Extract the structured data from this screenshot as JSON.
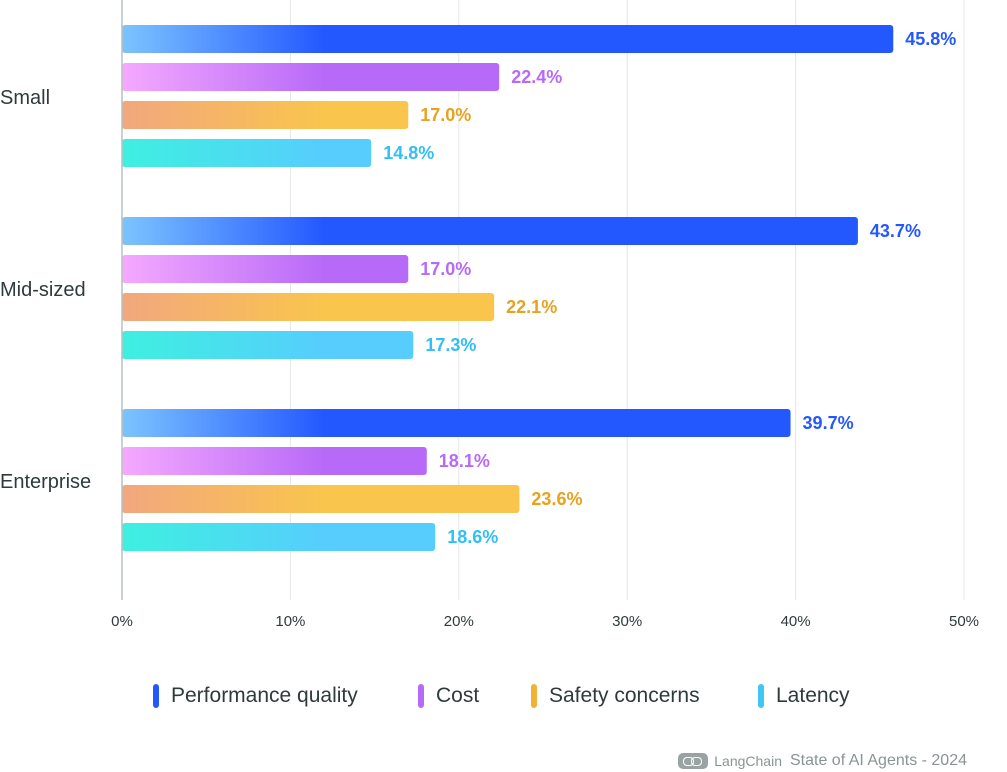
{
  "chart_data": {
    "type": "bar",
    "orientation": "horizontal",
    "categories": [
      "Small",
      "Mid-sized",
      "Enterprise"
    ],
    "series": [
      {
        "name": "Performance quality",
        "values": [
          45.8,
          43.7,
          39.7
        ],
        "color": "#2458ff",
        "gradient_start": "#7cc4ff"
      },
      {
        "name": "Cost",
        "values": [
          22.4,
          17.0,
          18.1
        ],
        "color": "#b76af7",
        "gradient_start": "#f5a9ff"
      },
      {
        "name": "Safety concerns",
        "values": [
          17.0,
          22.1,
          23.6
        ],
        "color": "#f9c54d",
        "gradient_start": "#f2a77e"
      },
      {
        "name": "Latency",
        "values": [
          14.8,
          17.3,
          18.6
        ],
        "color": "#56cdfd",
        "gradient_start": "#3ef0e0"
      }
    ],
    "value_labels": [
      [
        "45.8%",
        "43.7%",
        "39.7%"
      ],
      [
        "22.4%",
        "17.0%",
        "18.1%"
      ],
      [
        "17.0%",
        "22.1%",
        "23.6%"
      ],
      [
        "14.8%",
        "17.3%",
        "18.6%"
      ]
    ],
    "label_colors": [
      "#2458ff",
      "#b76af7",
      "#e8a21e",
      "#32bff5"
    ],
    "xlim": [
      0,
      50
    ],
    "xticks": [
      0,
      10,
      20,
      30,
      40,
      50
    ],
    "xtick_labels": [
      "0%",
      "10%",
      "20%",
      "30%",
      "40%",
      "50%"
    ],
    "grid": true,
    "legend_position": "bottom"
  },
  "footer": {
    "brand": "LangChain",
    "title": "State of AI Agents - 2024",
    "logo_icon": "langchain-logo-icon"
  }
}
